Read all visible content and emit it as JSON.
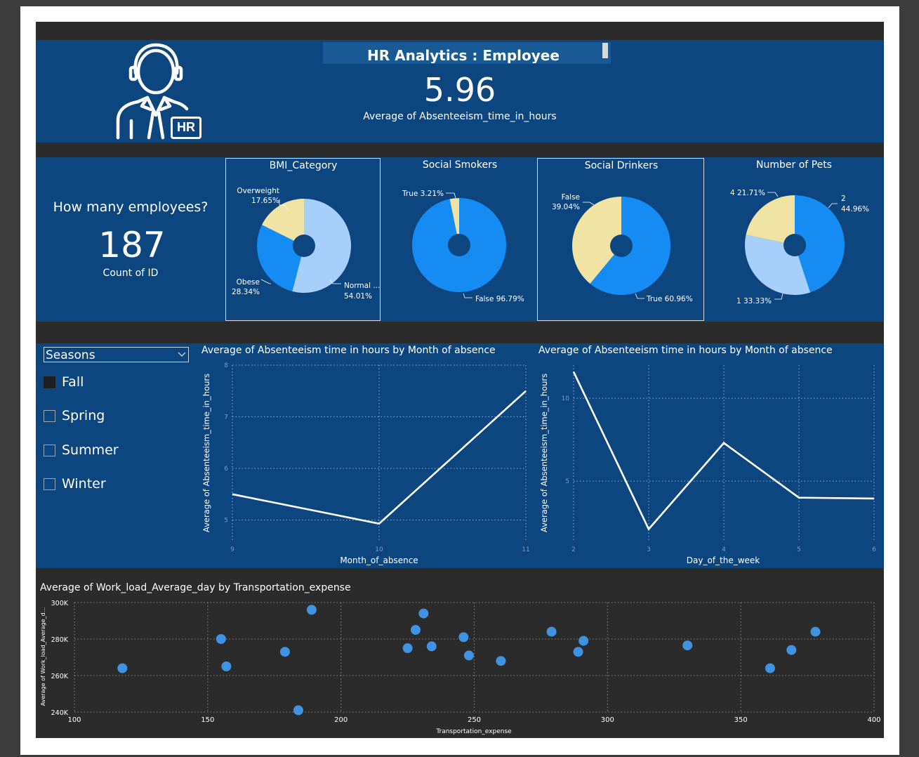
{
  "header": {
    "title": "HR Analytics : Employee Absenteeism",
    "kpi_value": "5.96",
    "kpi_label": "Average of Absenteeism_time_in_hours",
    "logo_text": "HR"
  },
  "employees": {
    "question": "How many employees?",
    "count": "187",
    "label": "Count of ID"
  },
  "donuts": [
    {
      "title": "BMI_Category",
      "slices": [
        {
          "label": "Normal ...",
          "pct": "54.01%",
          "value": 54.01,
          "color": "#a6cffb"
        },
        {
          "label": "Obese",
          "pct": "28.34%",
          "value": 28.34,
          "color": "#148cf4"
        },
        {
          "label": "Overweight",
          "pct": "17.65%",
          "value": 17.65,
          "color": "#f0e3a3"
        }
      ]
    },
    {
      "title": "Social Smokers",
      "slices": [
        {
          "label": "False",
          "pct": "96.79%",
          "value": 96.79,
          "color": "#148cf4"
        },
        {
          "label": "True",
          "pct": "3.21%",
          "value": 3.21,
          "color": "#f0e3a3"
        }
      ]
    },
    {
      "title": "Social Drinkers",
      "slices": [
        {
          "label": "True",
          "pct": "60.96%",
          "value": 60.96,
          "color": "#148cf4"
        },
        {
          "label": "False",
          "pct": "39.04%",
          "value": 39.04,
          "color": "#f0e3a3"
        }
      ]
    },
    {
      "title": "Number of Pets",
      "slices": [
        {
          "label": "2",
          "pct": "44.96%",
          "value": 44.96,
          "color": "#148cf4"
        },
        {
          "label": "1",
          "pct": "33.33%",
          "value": 33.33,
          "color": "#a6cffb"
        },
        {
          "label": "4",
          "pct": "21.71%",
          "value": 21.71,
          "color": "#f0e3a3"
        }
      ]
    }
  ],
  "donut_labels": {
    "bmi_overweight_name": "Overweight",
    "bmi_overweight_pct": "17.65%",
    "bmi_obese_name": "Obese",
    "bmi_obese_pct": "28.34%",
    "bmi_normal_name": "Normal ...",
    "bmi_normal_pct": "54.01%",
    "smk_true": "True 3.21%",
    "smk_false": "False 96.79%",
    "drk_false_name": "False",
    "drk_false_pct": "39.04%",
    "drk_true": "True 60.96%",
    "pets_4": "4 21.71%",
    "pets_2_name": "2",
    "pets_2_pct": "44.96%",
    "pets_1": "1 33.33%"
  },
  "slicer": {
    "title": "Seasons",
    "options": [
      {
        "label": "Fall",
        "checked": true
      },
      {
        "label": "Spring",
        "checked": false
      },
      {
        "label": "Summer",
        "checked": false
      },
      {
        "label": "Winter",
        "checked": false
      }
    ]
  },
  "chart_data": [
    {
      "type": "line",
      "title": "Average of Absenteeism time in hours by Month of absence",
      "xlabel": "Month_of_absence",
      "ylabel": "Average of Absenteeism_time_in_hours",
      "x": [
        9,
        10,
        11
      ],
      "values": [
        5.5,
        4.93,
        7.5
      ],
      "xlim": [
        9,
        11
      ],
      "ylim": [
        4.6,
        8.0
      ],
      "xticks": [
        "9",
        "10",
        "11"
      ],
      "yticks": [
        "5",
        "6",
        "7",
        "8"
      ],
      "grid": true
    },
    {
      "type": "line",
      "title": "Average of Absenteeism time in hours by Month of absence",
      "xlabel": "Day_of_the_week",
      "ylabel": "Average of Absenteeism_time_in_hours",
      "x": [
        2,
        3,
        4,
        5,
        6
      ],
      "values": [
        11.6,
        2.1,
        7.3,
        4.0,
        3.95
      ],
      "xlim": [
        2,
        6
      ],
      "ylim": [
        1.4,
        12.0
      ],
      "xticks": [
        "2",
        "3",
        "4",
        "5",
        "6"
      ],
      "yticks": [
        "5",
        "10"
      ],
      "grid": true
    },
    {
      "type": "scatter",
      "title": "Average of Work_load_Average_day by Transportation_expense",
      "xlabel": "Transportation_expense",
      "ylabel": "Average of Work_load_Average_d...",
      "x": [
        118,
        155,
        157,
        179,
        184,
        189,
        225,
        228,
        231,
        234,
        246,
        248,
        260,
        279,
        289,
        291,
        330,
        361,
        369,
        378
      ],
      "y": [
        264000,
        280000,
        265000,
        273000,
        241000,
        296000,
        275000,
        285000,
        294000,
        276000,
        281000,
        271000,
        268000,
        284000,
        273000,
        279000,
        276500,
        264000,
        274000,
        284000
      ],
      "xlim": [
        100,
        400
      ],
      "ylim": [
        240000,
        300000
      ],
      "xticks": [
        "100",
        "150",
        "200",
        "250",
        "300",
        "350",
        "400"
      ],
      "yticks": [
        "240K",
        "260K",
        "280K",
        "300K"
      ],
      "grid": true
    }
  ],
  "colors": {
    "band": "#0d467f",
    "accent_blue": "#148cf4",
    "light_blue": "#a6cffb",
    "pale_yellow": "#f0e3a3",
    "dot_blue": "#3f93e3"
  }
}
